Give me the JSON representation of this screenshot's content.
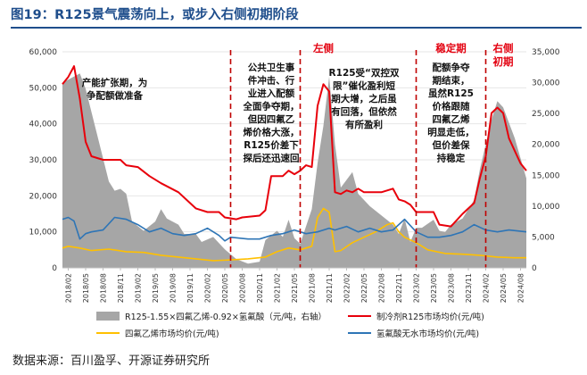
{
  "title": "图19：R125景气震荡向上，或步入右侧初期阶段",
  "source": "数据来源：百川盈孚、开源证券研究所",
  "chart_data": {
    "type": "line",
    "title": "图19：R125景气震荡向上，或步入右侧初期阶段",
    "x_tick_labels": [
      "2018/02",
      "2018/05",
      "2018/08",
      "2018/11",
      "2019/02",
      "2019/05",
      "2019/08",
      "2019/11",
      "2020/02",
      "2020/05",
      "2020/08",
      "2020/11",
      "2021/02",
      "2021/05",
      "2021/08",
      "2021/11",
      "2022/02",
      "2022/05",
      "2022/08",
      "2022/11",
      "2023/02",
      "2023/05",
      "2023/08",
      "2023/11",
      "2024/02",
      "2024/05",
      "2024/08"
    ],
    "x_range": [
      "2018/01",
      "2024/09"
    ],
    "y_left": {
      "min": 0,
      "max": 60000,
      "ticks": [
        "0",
        "10,000",
        "20,000",
        "30,000",
        "40,000",
        "50,000",
        "60,000"
      ],
      "label": "元/吨"
    },
    "y_right": {
      "min": 0,
      "max": 35000,
      "ticks": [
        "0",
        "5,000",
        "10,000",
        "15,000",
        "20,000",
        "25,000",
        "30,000",
        "35,000"
      ],
      "label": "元/吨"
    },
    "colors": {
      "spread": "#a6a6a6",
      "r125": "#e8000b",
      "tfe": "#ffc000",
      "hf": "#2e75b6",
      "phase_line": "#c00000",
      "grid": "#e6e6e6",
      "title": "#1f4e8c"
    },
    "series": [
      {
        "name": "R125-1.55×四氟乙烯-0.92×氢氟酸（元/吨，右轴）",
        "type": "area",
        "axis": "right",
        "color": "#a6a6a6",
        "points": [
          [
            "2018/01",
            30000
          ],
          [
            "2018/04",
            31500
          ],
          [
            "2018/05",
            29000
          ],
          [
            "2018/07",
            21500
          ],
          [
            "2018/09",
            14000
          ],
          [
            "2018/10",
            12500
          ],
          [
            "2018/11",
            12800
          ],
          [
            "2018/12",
            12000
          ],
          [
            "2019/01",
            7500
          ],
          [
            "2019/03",
            6000
          ],
          [
            "2019/05",
            7500
          ],
          [
            "2019/06",
            9500
          ],
          [
            "2019/07",
            8000
          ],
          [
            "2019/09",
            7000
          ],
          [
            "2019/10",
            5500
          ],
          [
            "2019/12",
            5500
          ],
          [
            "2020/01",
            4200
          ],
          [
            "2020/03",
            5000
          ],
          [
            "2020/05",
            3000
          ],
          [
            "2020/07",
            1400
          ],
          [
            "2020/09",
            700
          ],
          [
            "2020/11",
            1000
          ],
          [
            "2020/12",
            4500
          ],
          [
            "2021/02",
            6000
          ],
          [
            "2021/03",
            5000
          ],
          [
            "2021/04",
            7800
          ],
          [
            "2021/05",
            4800
          ],
          [
            "2021/06",
            3900
          ],
          [
            "2021/08",
            9500
          ],
          [
            "2021/09",
            17000
          ],
          [
            "2021/10",
            23000
          ],
          [
            "2021/11",
            31000
          ],
          [
            "2021/12",
            20000
          ],
          [
            "2022/01",
            13000
          ],
          [
            "2022/03",
            15500
          ],
          [
            "2022/04",
            12000
          ],
          [
            "2022/06",
            10000
          ],
          [
            "2022/08",
            8500
          ],
          [
            "2022/10",
            7000
          ],
          [
            "2022/11",
            5500
          ],
          [
            "2022/12",
            8000
          ],
          [
            "2023/01",
            4200
          ],
          [
            "2023/02",
            6500
          ],
          [
            "2023/03",
            6500
          ],
          [
            "2023/05",
            7800
          ],
          [
            "2023/06",
            6000
          ],
          [
            "2023/07",
            5800
          ],
          [
            "2023/08",
            7000
          ],
          [
            "2023/10",
            8000
          ],
          [
            "2023/12",
            11000
          ],
          [
            "2024/01",
            16000
          ],
          [
            "2024/03",
            24000
          ],
          [
            "2024/04",
            27000
          ],
          [
            "2024/05",
            26000
          ],
          [
            "2024/07",
            21000
          ],
          [
            "2024/09",
            14500
          ]
        ]
      },
      {
        "name": "制冷剂R125市场均价(元/吨)",
        "type": "line",
        "axis": "left",
        "color": "#e8000b",
        "points": [
          [
            "2018/01",
            51000
          ],
          [
            "2018/02",
            53000
          ],
          [
            "2018/03",
            56000
          ],
          [
            "2018/04",
            47000
          ],
          [
            "2018/05",
            35000
          ],
          [
            "2018/06",
            31000
          ],
          [
            "2018/08",
            30000
          ],
          [
            "2018/11",
            30000
          ],
          [
            "2018/12",
            28500
          ],
          [
            "2019/02",
            28000
          ],
          [
            "2019/04",
            25500
          ],
          [
            "2019/06",
            23500
          ],
          [
            "2019/09",
            21000
          ],
          [
            "2019/11",
            18000
          ],
          [
            "2019/12",
            16500
          ],
          [
            "2020/02",
            15500
          ],
          [
            "2020/04",
            15500
          ],
          [
            "2020/05",
            14000
          ],
          [
            "2020/07",
            13500
          ],
          [
            "2020/08",
            14000
          ],
          [
            "2020/11",
            14500
          ],
          [
            "2020/12",
            16000
          ],
          [
            "2021/01",
            25500
          ],
          [
            "2021/03",
            25500
          ],
          [
            "2021/04",
            27000
          ],
          [
            "2021/05",
            26000
          ],
          [
            "2021/06",
            27000
          ],
          [
            "2021/07",
            28500
          ],
          [
            "2021/08",
            28000
          ],
          [
            "2021/09",
            45000
          ],
          [
            "2021/10",
            51000
          ],
          [
            "2021/11",
            49000
          ],
          [
            "2021/12",
            21000
          ],
          [
            "2022/01",
            20500
          ],
          [
            "2022/02",
            21500
          ],
          [
            "2022/03",
            21000
          ],
          [
            "2022/04",
            22000
          ],
          [
            "2022/05",
            21000
          ],
          [
            "2022/08",
            21000
          ],
          [
            "2022/09",
            21500
          ],
          [
            "2022/10",
            22000
          ],
          [
            "2022/11",
            19000
          ],
          [
            "2022/12",
            18500
          ],
          [
            "2023/01",
            17500
          ],
          [
            "2023/02",
            15500
          ],
          [
            "2023/05",
            15500
          ],
          [
            "2023/06",
            12000
          ],
          [
            "2023/08",
            11500
          ],
          [
            "2023/10",
            15000
          ],
          [
            "2023/12",
            18000
          ],
          [
            "2024/01",
            25000
          ],
          [
            "2024/02",
            31000
          ],
          [
            "2024/03",
            43000
          ],
          [
            "2024/04",
            44500
          ],
          [
            "2024/05",
            43000
          ],
          [
            "2024/06",
            36000
          ],
          [
            "2024/07",
            32500
          ],
          [
            "2024/08",
            29000
          ],
          [
            "2024/09",
            27000
          ]
        ]
      },
      {
        "name": "四氟乙烯市场均价(元/吨)",
        "type": "line",
        "axis": "left",
        "color": "#ffc000",
        "points": [
          [
            "2018/01",
            5500
          ],
          [
            "2018/02",
            6000
          ],
          [
            "2018/04",
            5500
          ],
          [
            "2018/06",
            4800
          ],
          [
            "2018/09",
            5200
          ],
          [
            "2018/12",
            4500
          ],
          [
            "2019/03",
            4300
          ],
          [
            "2019/06",
            3500
          ],
          [
            "2019/09",
            3000
          ],
          [
            "2019/12",
            2500
          ],
          [
            "2020/03",
            2000
          ],
          [
            "2020/06",
            2200
          ],
          [
            "2020/09",
            2500
          ],
          [
            "2020/12",
            3000
          ],
          [
            "2021/02",
            4500
          ],
          [
            "2021/04",
            5500
          ],
          [
            "2021/06",
            5000
          ],
          [
            "2021/08",
            6000
          ],
          [
            "2021/09",
            14000
          ],
          [
            "2021/10",
            16500
          ],
          [
            "2021/11",
            15500
          ],
          [
            "2021/12",
            4500
          ],
          [
            "2022/01",
            4800
          ],
          [
            "2022/03",
            7000
          ],
          [
            "2022/05",
            8500
          ],
          [
            "2022/07",
            10000
          ],
          [
            "2022/09",
            12000
          ],
          [
            "2022/10",
            12500
          ],
          [
            "2022/11",
            10000
          ],
          [
            "2022/12",
            8500
          ],
          [
            "2023/02",
            7000
          ],
          [
            "2023/04",
            5000
          ],
          [
            "2023/07",
            4000
          ],
          [
            "2023/10",
            3800
          ],
          [
            "2024/01",
            3500
          ],
          [
            "2024/04",
            3000
          ],
          [
            "2024/07",
            2800
          ],
          [
            "2024/09",
            2800
          ]
        ]
      },
      {
        "name": "氢氟酸无水市场均价(元/吨)",
        "type": "line",
        "axis": "left",
        "color": "#2e75b6",
        "points": [
          [
            "2018/01",
            13500
          ],
          [
            "2018/02",
            14000
          ],
          [
            "2018/03",
            13000
          ],
          [
            "2018/04",
            8000
          ],
          [
            "2018/05",
            9500
          ],
          [
            "2018/06",
            10000
          ],
          [
            "2018/08",
            10500
          ],
          [
            "2018/10",
            14000
          ],
          [
            "2018/12",
            13500
          ],
          [
            "2019/02",
            12000
          ],
          [
            "2019/04",
            10000
          ],
          [
            "2019/06",
            11000
          ],
          [
            "2019/08",
            9500
          ],
          [
            "2019/10",
            9000
          ],
          [
            "2019/12",
            9500
          ],
          [
            "2020/02",
            11000
          ],
          [
            "2020/04",
            9000
          ],
          [
            "2020/05",
            7500
          ],
          [
            "2020/06",
            8500
          ],
          [
            "2020/09",
            8000
          ],
          [
            "2020/11",
            8000
          ],
          [
            "2021/01",
            9000
          ],
          [
            "2021/03",
            9500
          ],
          [
            "2021/05",
            10500
          ],
          [
            "2021/07",
            9500
          ],
          [
            "2021/09",
            10000
          ],
          [
            "2021/11",
            11000
          ],
          [
            "2021/12",
            10500
          ],
          [
            "2022/02",
            11500
          ],
          [
            "2022/04",
            10000
          ],
          [
            "2022/06",
            11000
          ],
          [
            "2022/08",
            10000
          ],
          [
            "2022/10",
            10500
          ],
          [
            "2022/12",
            13500
          ],
          [
            "2023/02",
            10000
          ],
          [
            "2023/04",
            8500
          ],
          [
            "2023/06",
            8500
          ],
          [
            "2023/08",
            9000
          ],
          [
            "2023/10",
            10000
          ],
          [
            "2023/12",
            12000
          ],
          [
            "2024/02",
            10500
          ],
          [
            "2024/04",
            10000
          ],
          [
            "2024/06",
            10500
          ],
          [
            "2024/09",
            10000
          ]
        ]
      }
    ],
    "phase_lines": [
      "2020/06",
      "2021/06",
      "2023/02",
      "2024/02"
    ],
    "phase_labels": [
      {
        "text": "左侧",
        "at": "2021/10"
      },
      {
        "text": "稳定期",
        "at": "2023/08"
      },
      {
        "text": "右侧",
        "at": "2024/05"
      },
      {
        "text": "初期",
        "at": "2024/05"
      }
    ],
    "annotations": [
      {
        "at": "2018/10",
        "lines": [
          "产能扩张期，为",
          "争配额做准备"
        ]
      },
      {
        "at": "2021/01",
        "lines": [
          "公共卫生事",
          "件冲击、行",
          "业进入配额",
          "全面争夺期，",
          "但因四氟乙",
          "烯价格大涨，",
          "R125价差下",
          "探后还迅速回"
        ]
      },
      {
        "at": "2022/05",
        "lines": [
          "R125受“双控双",
          "限”催化盈利短",
          "期大增，之后虽",
          "有回落，但依然",
          "有所盈利"
        ]
      },
      {
        "at": "2023/08",
        "lines": [
          "配额争夺",
          "期结束，",
          "虽然R125",
          "价格跟随",
          "四氟乙烯",
          "明显走低，",
          "但价差保",
          "持稳定"
        ]
      }
    ]
  }
}
